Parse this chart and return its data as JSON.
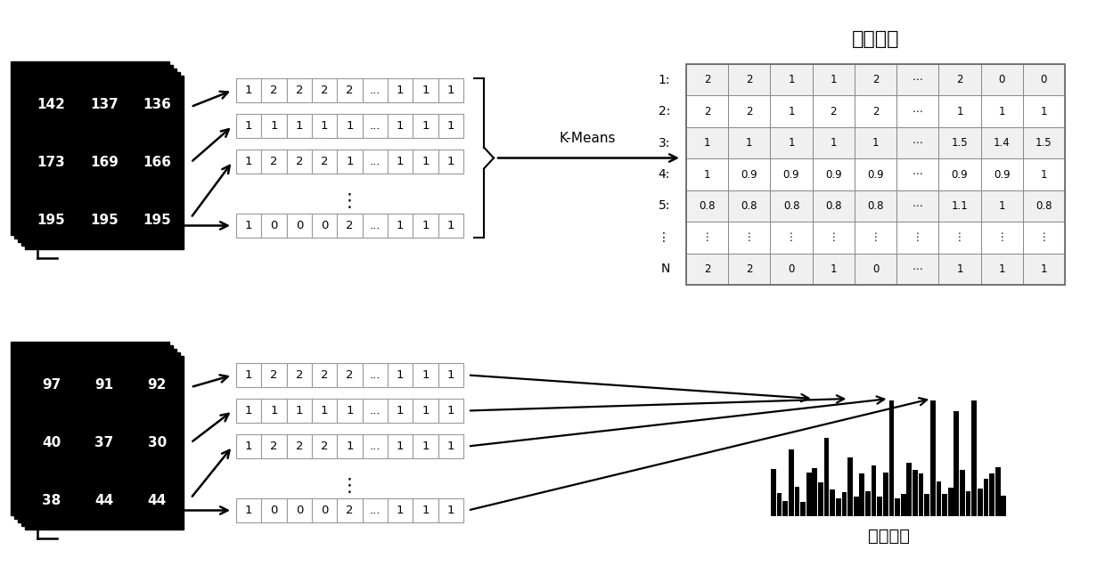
{
  "title": "特征码本",
  "bottom_label": "特征向量",
  "kmeans_label": "K-Means",
  "top_image_values": [
    [
      "142",
      "137",
      "136"
    ],
    [
      "173",
      "169",
      "166"
    ],
    [
      "195",
      "195",
      "195"
    ]
  ],
  "bottom_image_values": [
    [
      "97",
      "91",
      "92"
    ],
    [
      "40",
      "37",
      "30"
    ],
    [
      "38",
      "44",
      "44"
    ]
  ],
  "top_rows": [
    [
      "1",
      "2",
      "2",
      "2",
      "2",
      "...",
      "1",
      "1",
      "1"
    ],
    [
      "1",
      "1",
      "1",
      "1",
      "1",
      "...",
      "1",
      "1",
      "1"
    ],
    [
      "1",
      "2",
      "2",
      "2",
      "1",
      "...",
      "1",
      "1",
      "1"
    ],
    [
      "1",
      "0",
      "0",
      "0",
      "2",
      "...",
      "1",
      "1",
      "1"
    ]
  ],
  "bottom_rows": [
    [
      "1",
      "2",
      "2",
      "2",
      "2",
      "...",
      "1",
      "1",
      "1"
    ],
    [
      "1",
      "1",
      "1",
      "1",
      "1",
      "...",
      "1",
      "1",
      "1"
    ],
    [
      "1",
      "2",
      "2",
      "2",
      "1",
      "...",
      "1",
      "1",
      "1"
    ],
    [
      "1",
      "0",
      "0",
      "0",
      "2",
      "...",
      "1",
      "1",
      "1"
    ]
  ],
  "codebook_row_labels": [
    "1:",
    "2:",
    "3:",
    "4:",
    "5:",
    "⋮",
    "N"
  ],
  "codebook_rows": [
    [
      "2",
      "2",
      "1",
      "1",
      "2",
      "⋯",
      "2",
      "0",
      "0"
    ],
    [
      "2",
      "2",
      "1",
      "2",
      "2",
      "⋯",
      "1",
      "1",
      "1"
    ],
    [
      "1",
      "1",
      "1",
      "1",
      "1",
      "⋯",
      "1.5",
      "1.4",
      "1.5"
    ],
    [
      "1",
      "0.9",
      "0.9",
      "0.9",
      "0.9",
      "⋯",
      "0.9",
      "0.9",
      "1"
    ],
    [
      "0.8",
      "0.8",
      "0.8",
      "0.8",
      "0.8",
      "⋯",
      "1.1",
      "1",
      "0.8"
    ],
    [
      "⋮",
      "⋮",
      "⋮",
      "⋮",
      "⋮",
      "⋮",
      "⋮",
      "⋮",
      "⋮"
    ],
    [
      "2",
      "2",
      "0",
      "1",
      "0",
      "⋯",
      "1",
      "1",
      "1"
    ]
  ]
}
